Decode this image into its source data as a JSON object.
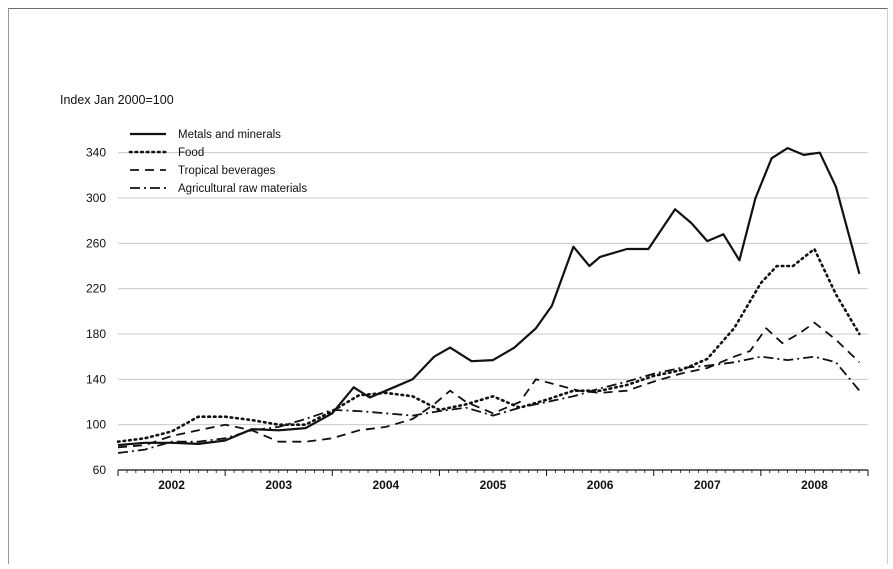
{
  "chart_data": {
    "type": "line",
    "title": "",
    "ylabel": "Index Jan 2000=100",
    "xlabel": "",
    "ylim": [
      60,
      360
    ],
    "yticks": [
      60,
      100,
      140,
      180,
      220,
      260,
      300,
      340
    ],
    "x_tick_labels": [
      "2002",
      "2003",
      "2004",
      "2005",
      "2006",
      "2007",
      "2008"
    ],
    "x_start": 2001.5,
    "x_end": 2008.5,
    "grid": "horizontal",
    "legend_position": "top-left",
    "series": [
      {
        "name": "Metals and minerals",
        "style": "solid",
        "color": "#111111",
        "points": [
          [
            2001.5,
            82
          ],
          [
            2001.75,
            84
          ],
          [
            2002.0,
            84
          ],
          [
            2002.25,
            83
          ],
          [
            2002.5,
            86
          ],
          [
            2002.75,
            96
          ],
          [
            2003.0,
            95
          ],
          [
            2003.25,
            97
          ],
          [
            2003.5,
            110
          ],
          [
            2003.7,
            133
          ],
          [
            2003.85,
            124
          ],
          [
            2004.0,
            130
          ],
          [
            2004.25,
            140
          ],
          [
            2004.45,
            160
          ],
          [
            2004.6,
            168
          ],
          [
            2004.8,
            156
          ],
          [
            2005.0,
            157
          ],
          [
            2005.2,
            168
          ],
          [
            2005.4,
            185
          ],
          [
            2005.55,
            205
          ],
          [
            2005.75,
            257
          ],
          [
            2005.9,
            240
          ],
          [
            2006.0,
            248
          ],
          [
            2006.25,
            255
          ],
          [
            2006.45,
            255
          ],
          [
            2006.7,
            290
          ],
          [
            2006.85,
            278
          ],
          [
            2007.0,
            262
          ],
          [
            2007.15,
            268
          ],
          [
            2007.3,
            245
          ],
          [
            2007.45,
            300
          ],
          [
            2007.6,
            335
          ],
          [
            2007.75,
            344
          ],
          [
            2007.9,
            338
          ],
          [
            2008.05,
            340
          ],
          [
            2008.2,
            310
          ],
          [
            2008.42,
            233
          ]
        ]
      },
      {
        "name": "Food",
        "style": "dotted",
        "color": "#111111",
        "points": [
          [
            2001.5,
            85
          ],
          [
            2001.75,
            88
          ],
          [
            2002.0,
            94
          ],
          [
            2002.25,
            107
          ],
          [
            2002.5,
            107
          ],
          [
            2002.75,
            104
          ],
          [
            2003.0,
            100
          ],
          [
            2003.25,
            100
          ],
          [
            2003.5,
            112
          ],
          [
            2003.75,
            126
          ],
          [
            2004.0,
            128
          ],
          [
            2004.25,
            125
          ],
          [
            2004.5,
            113
          ],
          [
            2004.75,
            118
          ],
          [
            2005.0,
            125
          ],
          [
            2005.25,
            115
          ],
          [
            2005.5,
            122
          ],
          [
            2005.75,
            130
          ],
          [
            2006.0,
            130
          ],
          [
            2006.25,
            135
          ],
          [
            2006.5,
            143
          ],
          [
            2006.75,
            148
          ],
          [
            2007.0,
            158
          ],
          [
            2007.25,
            185
          ],
          [
            2007.5,
            225
          ],
          [
            2007.65,
            240
          ],
          [
            2007.8,
            240
          ],
          [
            2008.0,
            255
          ],
          [
            2008.2,
            215
          ],
          [
            2008.42,
            180
          ]
        ]
      },
      {
        "name": "Tropical beverages",
        "style": "dashed",
        "color": "#111111",
        "points": [
          [
            2001.5,
            80
          ],
          [
            2001.75,
            82
          ],
          [
            2002.0,
            90
          ],
          [
            2002.25,
            95
          ],
          [
            2002.5,
            100
          ],
          [
            2002.75,
            95
          ],
          [
            2003.0,
            85
          ],
          [
            2003.25,
            85
          ],
          [
            2003.5,
            88
          ],
          [
            2003.75,
            95
          ],
          [
            2004.0,
            98
          ],
          [
            2004.25,
            105
          ],
          [
            2004.45,
            118
          ],
          [
            2004.6,
            130
          ],
          [
            2004.75,
            120
          ],
          [
            2005.0,
            110
          ],
          [
            2005.25,
            120
          ],
          [
            2005.4,
            140
          ],
          [
            2005.6,
            135
          ],
          [
            2005.8,
            130
          ],
          [
            2006.0,
            128
          ],
          [
            2006.25,
            130
          ],
          [
            2006.5,
            138
          ],
          [
            2006.75,
            145
          ],
          [
            2007.0,
            150
          ],
          [
            2007.25,
            160
          ],
          [
            2007.4,
            165
          ],
          [
            2007.55,
            185
          ],
          [
            2007.7,
            172
          ],
          [
            2007.85,
            180
          ],
          [
            2008.0,
            190
          ],
          [
            2008.2,
            175
          ],
          [
            2008.42,
            155
          ]
        ]
      },
      {
        "name": "Agricultural raw materials",
        "style": "dash-dot",
        "color": "#111111",
        "points": [
          [
            2001.5,
            75
          ],
          [
            2001.75,
            78
          ],
          [
            2002.0,
            85
          ],
          [
            2002.25,
            85
          ],
          [
            2002.5,
            88
          ],
          [
            2002.75,
            95
          ],
          [
            2003.0,
            98
          ],
          [
            2003.25,
            105
          ],
          [
            2003.5,
            113
          ],
          [
            2003.75,
            112
          ],
          [
            2004.0,
            110
          ],
          [
            2004.25,
            108
          ],
          [
            2004.5,
            112
          ],
          [
            2004.75,
            115
          ],
          [
            2005.0,
            108
          ],
          [
            2005.25,
            115
          ],
          [
            2005.5,
            120
          ],
          [
            2005.75,
            125
          ],
          [
            2006.0,
            132
          ],
          [
            2006.25,
            138
          ],
          [
            2006.5,
            145
          ],
          [
            2006.75,
            150
          ],
          [
            2007.0,
            152
          ],
          [
            2007.25,
            155
          ],
          [
            2007.5,
            160
          ],
          [
            2007.75,
            157
          ],
          [
            2008.0,
            160
          ],
          [
            2008.2,
            155
          ],
          [
            2008.42,
            130
          ]
        ]
      }
    ]
  }
}
